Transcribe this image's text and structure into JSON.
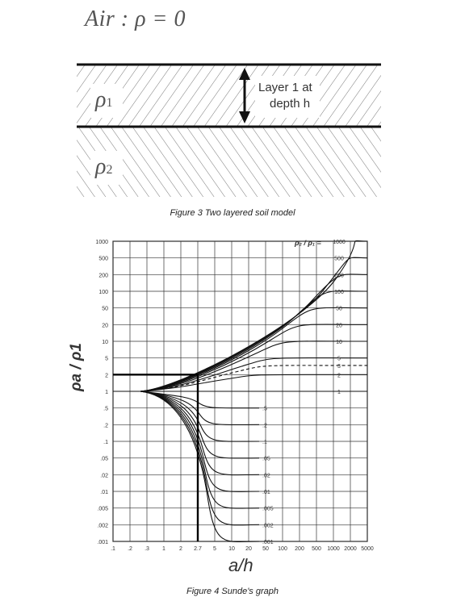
{
  "soil_model": {
    "air_label": "Air : ρ = 0",
    "rho1": "ρ",
    "rho1_sub": "1",
    "rho2": "ρ",
    "rho2_sub": "2",
    "layer_label_line1": "Layer 1 at",
    "layer_label_line2": "depth h",
    "caption": "Figure 3 Two layered soil model"
  },
  "sunde": {
    "caption": "Figure 4 Sunde's graph",
    "y_axis_label": "ρa / ρ1",
    "x_axis_label": "a/h",
    "curve_param_label": "ρ₂ / ρ₁ =",
    "y_ticks": [
      "1000",
      "500",
      "200",
      "100",
      "50",
      "20",
      "10",
      "5",
      "2",
      "1",
      ".5",
      ".2",
      ".1",
      ".05",
      ".02",
      ".01",
      ".005",
      ".002",
      ".001"
    ],
    "x_ticks": [
      ".1",
      ".2",
      ".3",
      "1",
      "2",
      "2.7",
      "5",
      "10",
      "20",
      "50",
      "100",
      "200",
      "500",
      "1000",
      "2000",
      "5000"
    ],
    "right_labels_upper": [
      "1000",
      "500",
      "200",
      "100",
      "50",
      "20",
      "10",
      "5",
      "3",
      "2",
      "1"
    ],
    "right_labels_lower": [
      ".5",
      ".2",
      ".1",
      ".05",
      ".02",
      ".01",
      ".005",
      ".002",
      ".001"
    ]
  },
  "chart_data": {
    "type": "line",
    "title": "",
    "xlabel": "a/h",
    "ylabel": "ρa / ρ1",
    "xscale": "log",
    "yscale": "log",
    "xlim": [
      0.1,
      5000
    ],
    "ylim": [
      0.001,
      1000
    ],
    "grid": true,
    "annotation": {
      "x": 2.7,
      "y": 2
    },
    "series": [
      {
        "name": "1000",
        "values": []
      },
      {
        "name": "500",
        "values": []
      },
      {
        "name": "200",
        "values": []
      },
      {
        "name": "100",
        "values": []
      },
      {
        "name": "50",
        "values": []
      },
      {
        "name": "20",
        "values": []
      },
      {
        "name": "10",
        "values": []
      },
      {
        "name": "5",
        "values": []
      },
      {
        "name": "3",
        "values": []
      },
      {
        "name": "2",
        "values": []
      },
      {
        "name": "1",
        "values": []
      },
      {
        "name": ".5",
        "values": []
      },
      {
        "name": ".2",
        "values": []
      },
      {
        "name": ".1",
        "values": []
      },
      {
        "name": ".05",
        "values": []
      },
      {
        "name": ".02",
        "values": []
      },
      {
        "name": ".01",
        "values": []
      },
      {
        "name": ".005",
        "values": []
      },
      {
        "name": ".002",
        "values": []
      },
      {
        "name": ".001",
        "values": []
      }
    ]
  }
}
